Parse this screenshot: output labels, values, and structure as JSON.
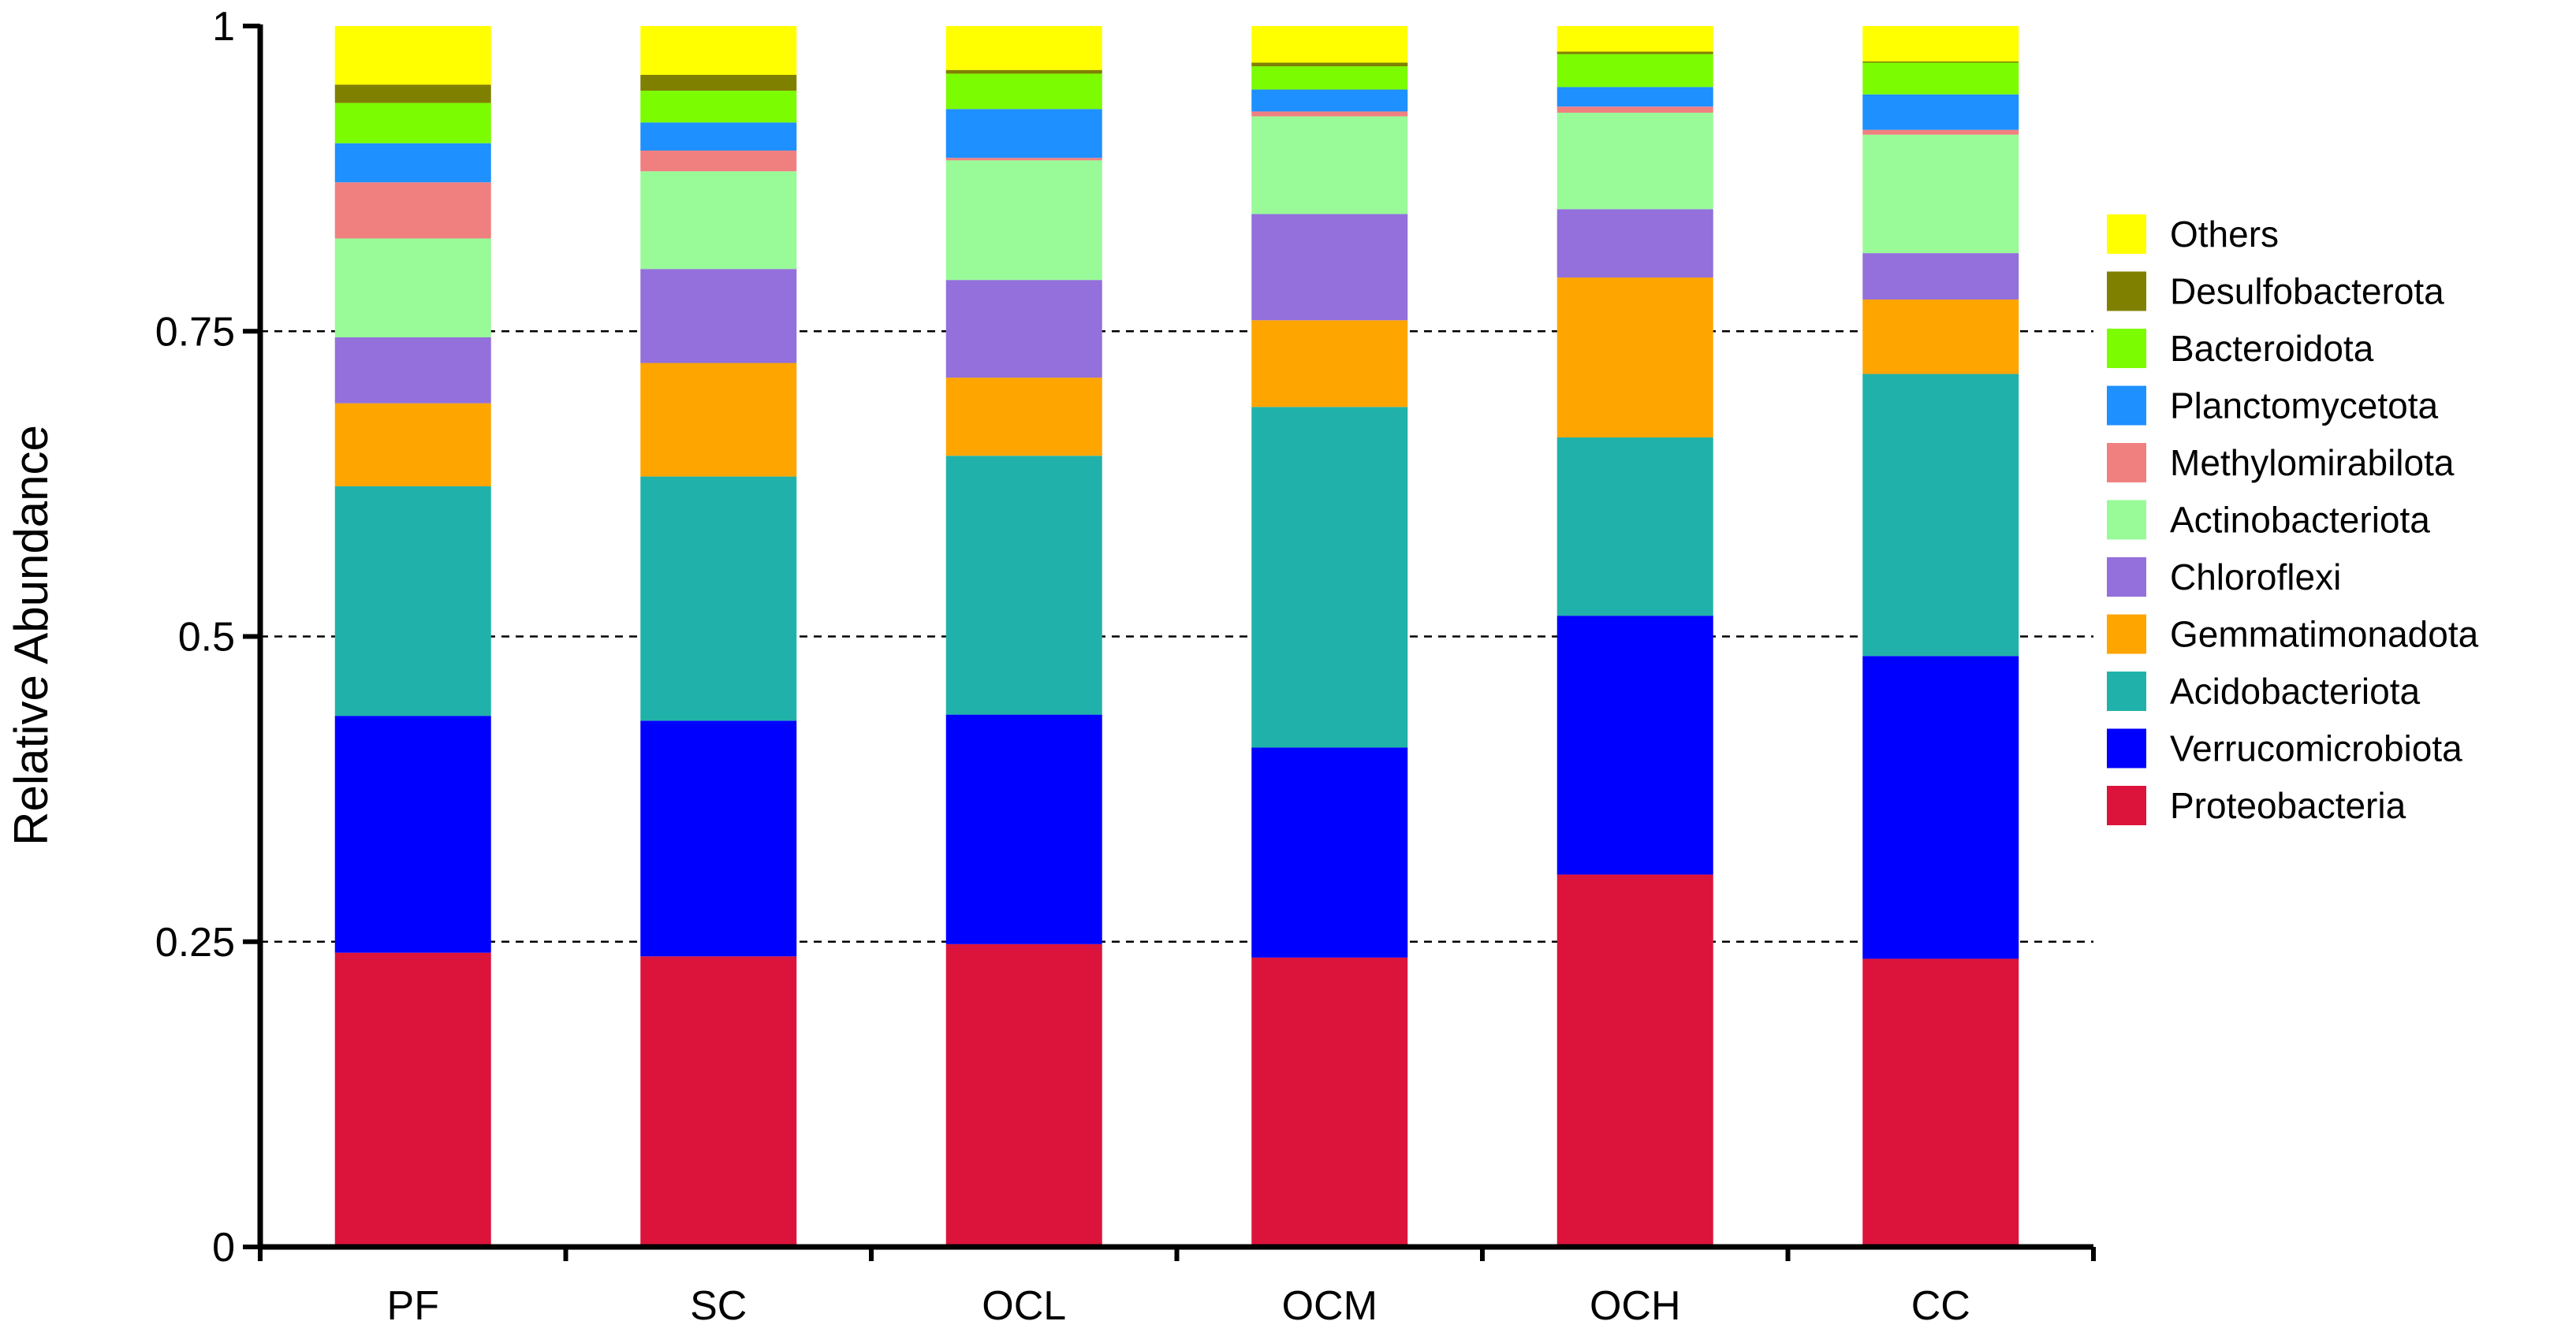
{
  "chart_data": {
    "type": "bar",
    "stacked": true,
    "title": "",
    "xlabel": "",
    "ylabel": "Relative Abundance",
    "ylim": [
      0,
      1
    ],
    "yticks": [
      "0",
      "0.25",
      "0.5",
      "0.75",
      "1"
    ],
    "ytick_values": [
      0,
      0.25,
      0.5,
      0.75,
      1
    ],
    "gridlines": [
      0.25,
      0.5,
      0.75
    ],
    "categories": [
      "PF",
      "SC",
      "OCL",
      "OCM",
      "OCH",
      "CC"
    ],
    "legend_position": "right",
    "series": [
      {
        "name": "Proteobacteria",
        "color": "#DC143C",
        "values": [
          0.241,
          0.238,
          0.248,
          0.237,
          0.305,
          0.236
        ]
      },
      {
        "name": "Verrucomicrobiota",
        "color": "#0000FF",
        "values": [
          0.194,
          0.193,
          0.188,
          0.172,
          0.212,
          0.248
        ]
      },
      {
        "name": "Acidobacteriota",
        "color": "#20B2AA",
        "values": [
          0.188,
          0.2,
          0.212,
          0.279,
          0.146,
          0.231
        ]
      },
      {
        "name": "Gemmatimonadota",
        "color": "#FFA500",
        "values": [
          0.068,
          0.093,
          0.064,
          0.071,
          0.131,
          0.061
        ]
      },
      {
        "name": "Chloroflexi",
        "color": "#9370DB",
        "values": [
          0.054,
          0.077,
          0.08,
          0.087,
          0.056,
          0.038
        ]
      },
      {
        "name": "Actinobacteriota",
        "color": "#98FB98",
        "values": [
          0.081,
          0.08,
          0.098,
          0.08,
          0.079,
          0.097
        ]
      },
      {
        "name": "Methylomirabilota",
        "color": "#F08080",
        "values": [
          0.046,
          0.017,
          0.002,
          0.004,
          0.005,
          0.004
        ]
      },
      {
        "name": "Planctomycetota",
        "color": "#1E90FF",
        "values": [
          0.032,
          0.023,
          0.04,
          0.018,
          0.016,
          0.029
        ]
      },
      {
        "name": "Bacteroidota",
        "color": "#7CFC00",
        "values": [
          0.033,
          0.026,
          0.029,
          0.019,
          0.027,
          0.026
        ]
      },
      {
        "name": "Desulfobacterota",
        "color": "#808000",
        "values": [
          0.015,
          0.013,
          0.003,
          0.003,
          0.002,
          0.001
        ]
      },
      {
        "name": "Others",
        "color": "#FFFF00",
        "values": [
          0.048,
          0.04,
          0.036,
          0.03,
          0.021,
          0.029
        ]
      }
    ]
  }
}
